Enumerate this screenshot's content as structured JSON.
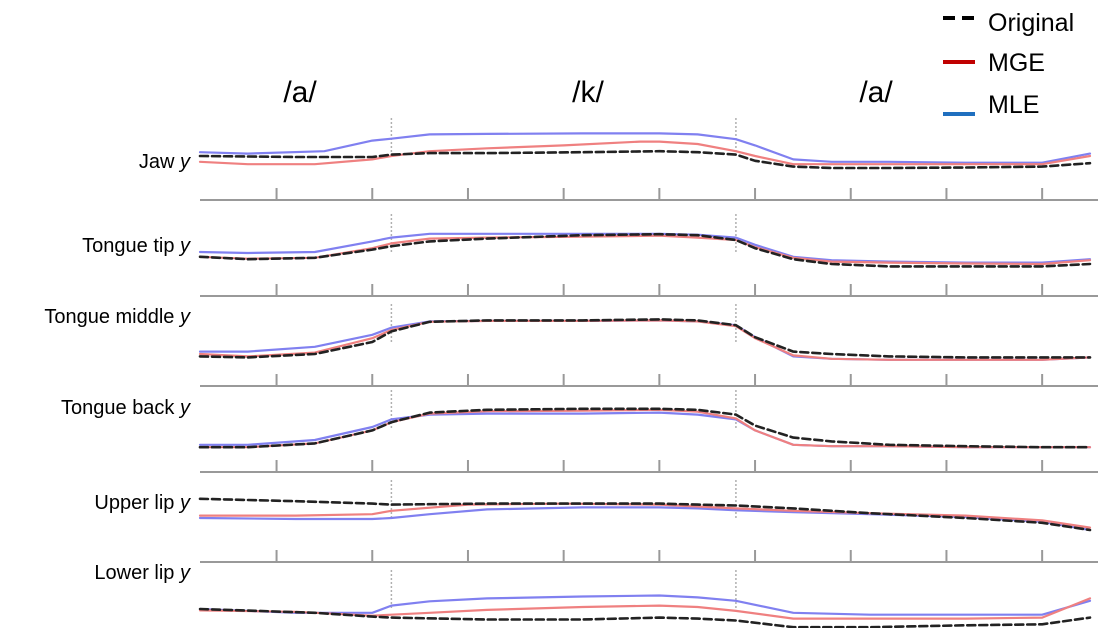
{
  "chart_data": {
    "type": "line",
    "segments": [
      {
        "label": "/a/",
        "start": 0,
        "end": 20
      },
      {
        "label": "/k/",
        "start": 20,
        "end": 56
      },
      {
        "label": "/a/",
        "start": 56,
        "end": 93
      }
    ],
    "legend": [
      {
        "label": "Original",
        "color": "#000000",
        "dash": true
      },
      {
        "label": "MGE",
        "color": "#c00000",
        "dash": false
      },
      {
        "label": "MLE",
        "color": "#1f6fbf",
        "dash": false
      }
    ],
    "x_ticks": [
      8,
      18,
      28,
      38,
      48,
      58,
      68,
      78,
      88
    ],
    "x_range": [
      0,
      93
    ],
    "y_range": [
      0,
      1
    ],
    "series_colors": {
      "Original": "#222222",
      "MGE": "#ef8080",
      "MLE": "#8080f0"
    },
    "panels": [
      {
        "name": "Jaw",
        "var": "y",
        "series": [
          {
            "name": "Original",
            "x": [
              0,
              10,
              18,
              20,
              24,
              30,
              40,
              48,
              52,
              56,
              58,
              62,
              66,
              72,
              80,
              88,
              93
            ],
            "y": [
              0.5,
              0.48,
              0.48,
              0.53,
              0.56,
              0.56,
              0.58,
              0.6,
              0.58,
              0.53,
              0.4,
              0.28,
              0.25,
              0.25,
              0.26,
              0.28,
              0.35
            ]
          },
          {
            "name": "MGE",
            "x": [
              0,
              5,
              12,
              18,
              20,
              24,
              30,
              38,
              46,
              48,
              52,
              56,
              58,
              62,
              66,
              72,
              80,
              88,
              93
            ],
            "y": [
              0.38,
              0.33,
              0.33,
              0.43,
              0.5,
              0.6,
              0.66,
              0.72,
              0.8,
              0.8,
              0.75,
              0.6,
              0.5,
              0.33,
              0.33,
              0.33,
              0.33,
              0.33,
              0.5
            ]
          },
          {
            "name": "MLE",
            "x": [
              0,
              5,
              13,
              18,
              20,
              24,
              30,
              40,
              48,
              52,
              56,
              58,
              62,
              66,
              72,
              80,
              88,
              93
            ],
            "y": [
              0.58,
              0.55,
              0.6,
              0.82,
              0.86,
              0.95,
              0.96,
              0.97,
              0.97,
              0.95,
              0.85,
              0.72,
              0.43,
              0.38,
              0.38,
              0.36,
              0.36,
              0.55
            ]
          }
        ]
      },
      {
        "name": "Tongue tip",
        "var": "y",
        "series": [
          {
            "name": "Original",
            "x": [
              0,
              5,
              12,
              18,
              20,
              24,
              30,
              40,
              48,
              52,
              56,
              58,
              62,
              66,
              72,
              80,
              88,
              93
            ],
            "y": [
              0.4,
              0.35,
              0.38,
              0.55,
              0.62,
              0.72,
              0.78,
              0.85,
              0.87,
              0.85,
              0.75,
              0.58,
              0.35,
              0.25,
              0.2,
              0.2,
              0.2,
              0.25
            ]
          },
          {
            "name": "MGE",
            "x": [
              0,
              5,
              12,
              18,
              20,
              24,
              30,
              40,
              48,
              52,
              56,
              58,
              62,
              66,
              72,
              80,
              88,
              93
            ],
            "y": [
              0.4,
              0.36,
              0.38,
              0.58,
              0.68,
              0.78,
              0.8,
              0.82,
              0.84,
              0.8,
              0.75,
              0.6,
              0.38,
              0.3,
              0.28,
              0.26,
              0.25,
              0.33
            ]
          },
          {
            "name": "MLE",
            "x": [
              0,
              5,
              12,
              18,
              20,
              24,
              30,
              40,
              48,
              52,
              56,
              58,
              62,
              66,
              72,
              80,
              88,
              93
            ],
            "y": [
              0.5,
              0.48,
              0.5,
              0.72,
              0.8,
              0.88,
              0.88,
              0.88,
              0.88,
              0.86,
              0.8,
              0.65,
              0.4,
              0.33,
              0.3,
              0.28,
              0.28,
              0.35
            ]
          }
        ]
      },
      {
        "name": "Tongue middle",
        "var": "y",
        "series": [
          {
            "name": "Original",
            "x": [
              0,
              5,
              12,
              18,
              20,
              24,
              30,
              40,
              48,
              52,
              56,
              58,
              62,
              66,
              72,
              80,
              88,
              93
            ],
            "y": [
              0.2,
              0.18,
              0.25,
              0.5,
              0.72,
              0.92,
              0.95,
              0.95,
              0.97,
              0.95,
              0.85,
              0.6,
              0.3,
              0.25,
              0.2,
              0.18,
              0.18,
              0.18
            ]
          },
          {
            "name": "MGE",
            "x": [
              0,
              5,
              12,
              18,
              20,
              24,
              30,
              40,
              48,
              52,
              56,
              58,
              62,
              66,
              72,
              80,
              88,
              93
            ],
            "y": [
              0.25,
              0.2,
              0.28,
              0.58,
              0.75,
              0.92,
              0.94,
              0.94,
              0.95,
              0.93,
              0.83,
              0.58,
              0.22,
              0.15,
              0.13,
              0.13,
              0.13,
              0.18
            ]
          },
          {
            "name": "MLE",
            "x": [
              0,
              5,
              12,
              18,
              20,
              24,
              30,
              40,
              48,
              52,
              56,
              58,
              62,
              66,
              72,
              80,
              88,
              93
            ],
            "y": [
              0.3,
              0.3,
              0.4,
              0.65,
              0.8,
              0.93,
              0.94,
              0.94,
              0.95,
              0.93,
              0.85,
              0.6,
              0.2,
              0.15,
              0.13,
              0.13,
              0.13,
              0.18
            ]
          }
        ]
      },
      {
        "name": "Tongue back",
        "var": "y",
        "series": [
          {
            "name": "Original",
            "x": [
              0,
              5,
              12,
              18,
              20,
              24,
              30,
              40,
              48,
              52,
              56,
              58,
              62,
              66,
              72,
              80,
              88,
              93
            ],
            "y": [
              0.1,
              0.1,
              0.18,
              0.45,
              0.62,
              0.82,
              0.88,
              0.9,
              0.9,
              0.88,
              0.78,
              0.55,
              0.3,
              0.22,
              0.15,
              0.12,
              0.1,
              0.1
            ]
          },
          {
            "name": "MGE",
            "x": [
              0,
              5,
              12,
              18,
              20,
              24,
              30,
              40,
              48,
              52,
              56,
              58,
              62,
              66,
              72,
              80,
              88,
              93
            ],
            "y": [
              0.1,
              0.1,
              0.18,
              0.45,
              0.62,
              0.8,
              0.85,
              0.86,
              0.88,
              0.84,
              0.7,
              0.45,
              0.15,
              0.12,
              0.12,
              0.1,
              0.1,
              0.1
            ]
          },
          {
            "name": "MLE",
            "x": [
              0,
              5,
              12,
              18,
              20,
              24,
              30,
              40,
              48,
              52,
              56,
              58,
              62,
              66,
              72,
              80,
              88,
              93
            ],
            "y": [
              0.15,
              0.15,
              0.25,
              0.52,
              0.68,
              0.78,
              0.8,
              0.8,
              0.82,
              0.78,
              0.68,
              0.45,
              0.15,
              0.12,
              0.12,
              0.1,
              0.1,
              0.1
            ]
          }
        ]
      },
      {
        "name": "Upper lip",
        "var": "y",
        "series": [
          {
            "name": "Original",
            "x": [
              0,
              10,
              18,
              20,
              30,
              40,
              48,
              52,
              56,
              62,
              70,
              80,
              88,
              93
            ],
            "y": [
              0.9,
              0.85,
              0.8,
              0.78,
              0.8,
              0.8,
              0.8,
              0.78,
              0.76,
              0.7,
              0.6,
              0.5,
              0.4,
              0.25
            ]
          },
          {
            "name": "MGE",
            "x": [
              0,
              10,
              18,
              20,
              28,
              38,
              48,
              52,
              56,
              62,
              70,
              80,
              88,
              93
            ],
            "y": [
              0.55,
              0.55,
              0.58,
              0.65,
              0.78,
              0.8,
              0.78,
              0.74,
              0.7,
              0.65,
              0.6,
              0.55,
              0.45,
              0.3
            ]
          },
          {
            "name": "MLE",
            "x": [
              0,
              10,
              18,
              20,
              24,
              30,
              40,
              48,
              52,
              56,
              62,
              70,
              80,
              88,
              93
            ],
            "y": [
              0.5,
              0.48,
              0.48,
              0.5,
              0.58,
              0.68,
              0.72,
              0.72,
              0.7,
              0.66,
              0.62,
              0.58,
              0.52,
              0.42,
              0.25
            ]
          }
        ]
      },
      {
        "name": "Lower lip",
        "var": "y",
        "series": [
          {
            "name": "Original",
            "x": [
              0,
              12,
              18,
              20,
              30,
              40,
              48,
              52,
              56,
              62,
              70,
              80,
              88,
              93
            ],
            "y": [
              0.48,
              0.4,
              0.32,
              0.3,
              0.26,
              0.26,
              0.3,
              0.28,
              0.24,
              0.1,
              0.1,
              0.14,
              0.16,
              0.3
            ]
          },
          {
            "name": "MGE",
            "x": [
              0,
              10,
              18,
              20,
              24,
              30,
              40,
              48,
              52,
              56,
              62,
              70,
              80,
              88,
              93
            ],
            "y": [
              0.45,
              0.42,
              0.34,
              0.36,
              0.4,
              0.46,
              0.52,
              0.55,
              0.52,
              0.44,
              0.28,
              0.28,
              0.28,
              0.3,
              0.7
            ]
          },
          {
            "name": "MLE",
            "x": [
              0,
              10,
              18,
              20,
              24,
              30,
              40,
              48,
              52,
              56,
              62,
              70,
              80,
              88,
              93
            ],
            "y": [
              0.48,
              0.4,
              0.4,
              0.55,
              0.64,
              0.7,
              0.74,
              0.76,
              0.72,
              0.65,
              0.4,
              0.36,
              0.36,
              0.36,
              0.65
            ]
          }
        ]
      }
    ]
  }
}
